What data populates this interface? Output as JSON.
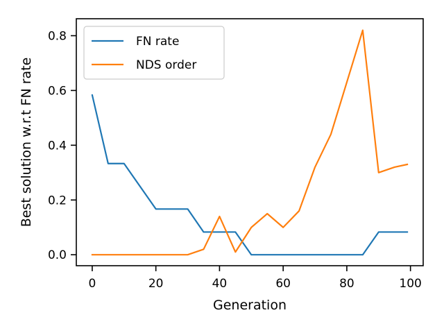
{
  "chart_data": {
    "type": "line",
    "xlabel": "Generation",
    "ylabel": "Best solution w.r.t FN rate",
    "xlim": [
      -5,
      104
    ],
    "ylim": [
      -0.04,
      0.862
    ],
    "xticks": [
      0,
      20,
      40,
      60,
      80,
      100
    ],
    "xtick_labels": [
      "0",
      "20",
      "40",
      "60",
      "80",
      "100"
    ],
    "yticks": [
      0.0,
      0.2,
      0.4,
      0.6,
      0.8
    ],
    "ytick_labels": [
      "0.0",
      "0.2",
      "0.4",
      "0.6",
      "0.8"
    ],
    "legend_position": "upper-left",
    "grid": false,
    "series": [
      {
        "name": "FN rate",
        "color": "#1f77b4",
        "x": [
          0,
          5,
          10,
          15,
          20,
          25,
          30,
          35,
          40,
          45,
          50,
          55,
          60,
          65,
          70,
          75,
          80,
          85,
          90,
          95,
          99
        ],
        "y": [
          0.583,
          0.333,
          0.333,
          0.25,
          0.167,
          0.167,
          0.167,
          0.083,
          0.083,
          0.083,
          0.0,
          0.0,
          0.0,
          0.0,
          0.0,
          0.0,
          0.0,
          0.0,
          0.083,
          0.083,
          0.083
        ]
      },
      {
        "name": "NDS order",
        "color": "#ff7f0e",
        "x": [
          0,
          5,
          10,
          15,
          20,
          25,
          30,
          35,
          40,
          45,
          50,
          55,
          60,
          65,
          70,
          75,
          80,
          85,
          90,
          95,
          99
        ],
        "y": [
          0.0,
          0.0,
          0.0,
          0.0,
          0.0,
          0.0,
          0.0,
          0.02,
          0.14,
          0.01,
          0.1,
          0.15,
          0.1,
          0.16,
          0.32,
          0.44,
          0.63,
          0.82,
          0.3,
          0.32,
          0.33
        ]
      }
    ]
  }
}
